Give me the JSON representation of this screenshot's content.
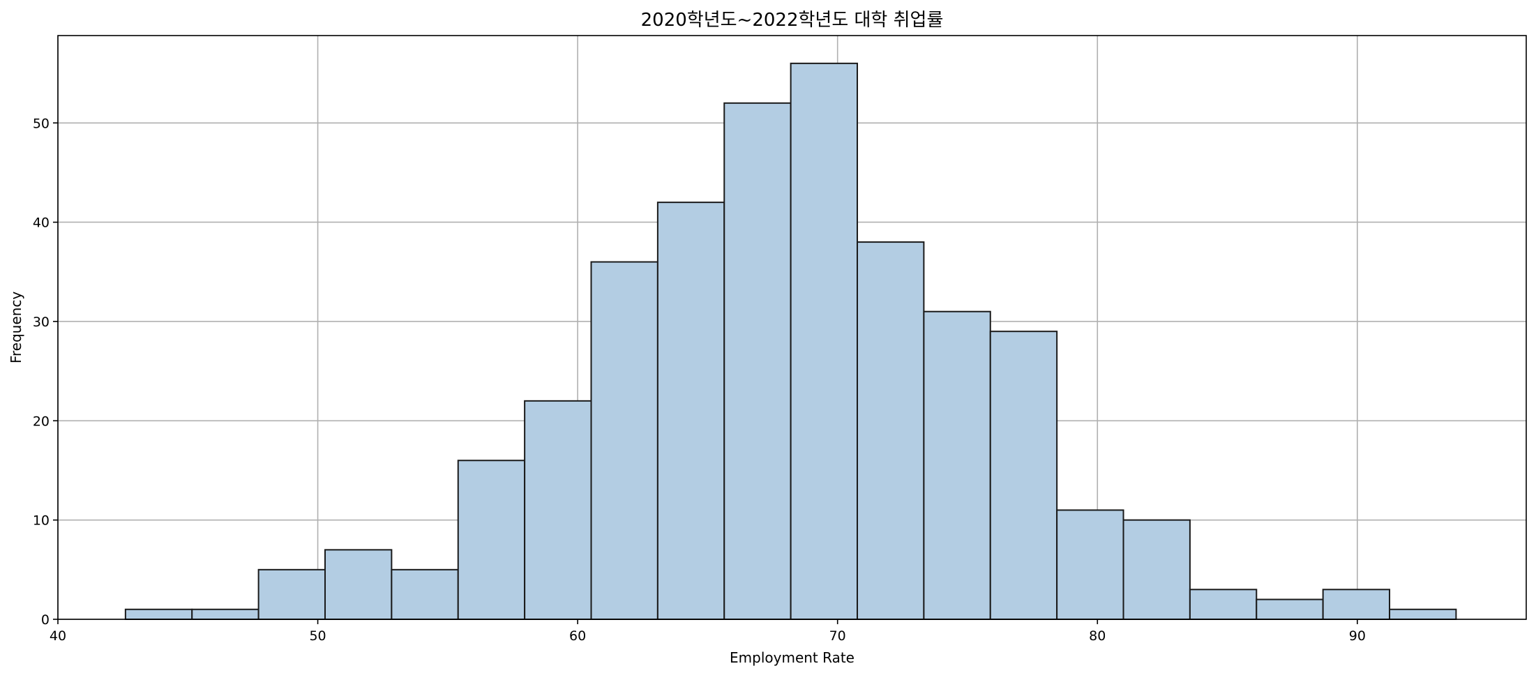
{
  "chart_data": {
    "type": "bar",
    "subtype": "histogram",
    "title": "2020학년도~2022학년도 대학 취업률",
    "xlabel": "Employment Rate",
    "ylabel": "Frequency",
    "xlim": [
      40,
      96.5
    ],
    "ylim": [
      0,
      58.8
    ],
    "xticks": [
      40,
      50,
      60,
      70,
      80,
      90
    ],
    "yticks": [
      0,
      10,
      20,
      30,
      40,
      50
    ],
    "grid": true,
    "bin_edges": [
      42.6,
      45.16,
      47.72,
      50.28,
      52.84,
      55.4,
      57.96,
      60.52,
      63.08,
      65.64,
      68.2,
      70.76,
      73.32,
      75.88,
      78.44,
      81.0,
      83.56,
      86.12,
      88.68,
      91.24,
      93.8
    ],
    "values": [
      1,
      1,
      5,
      7,
      5,
      16,
      22,
      36,
      42,
      52,
      56,
      38,
      31,
      29,
      11,
      10,
      3,
      2,
      3,
      1
    ],
    "colors": {
      "bar_fill": "#b3cde3",
      "bar_edge": "#1a1a1a",
      "grid": "#b0b0b0"
    }
  }
}
